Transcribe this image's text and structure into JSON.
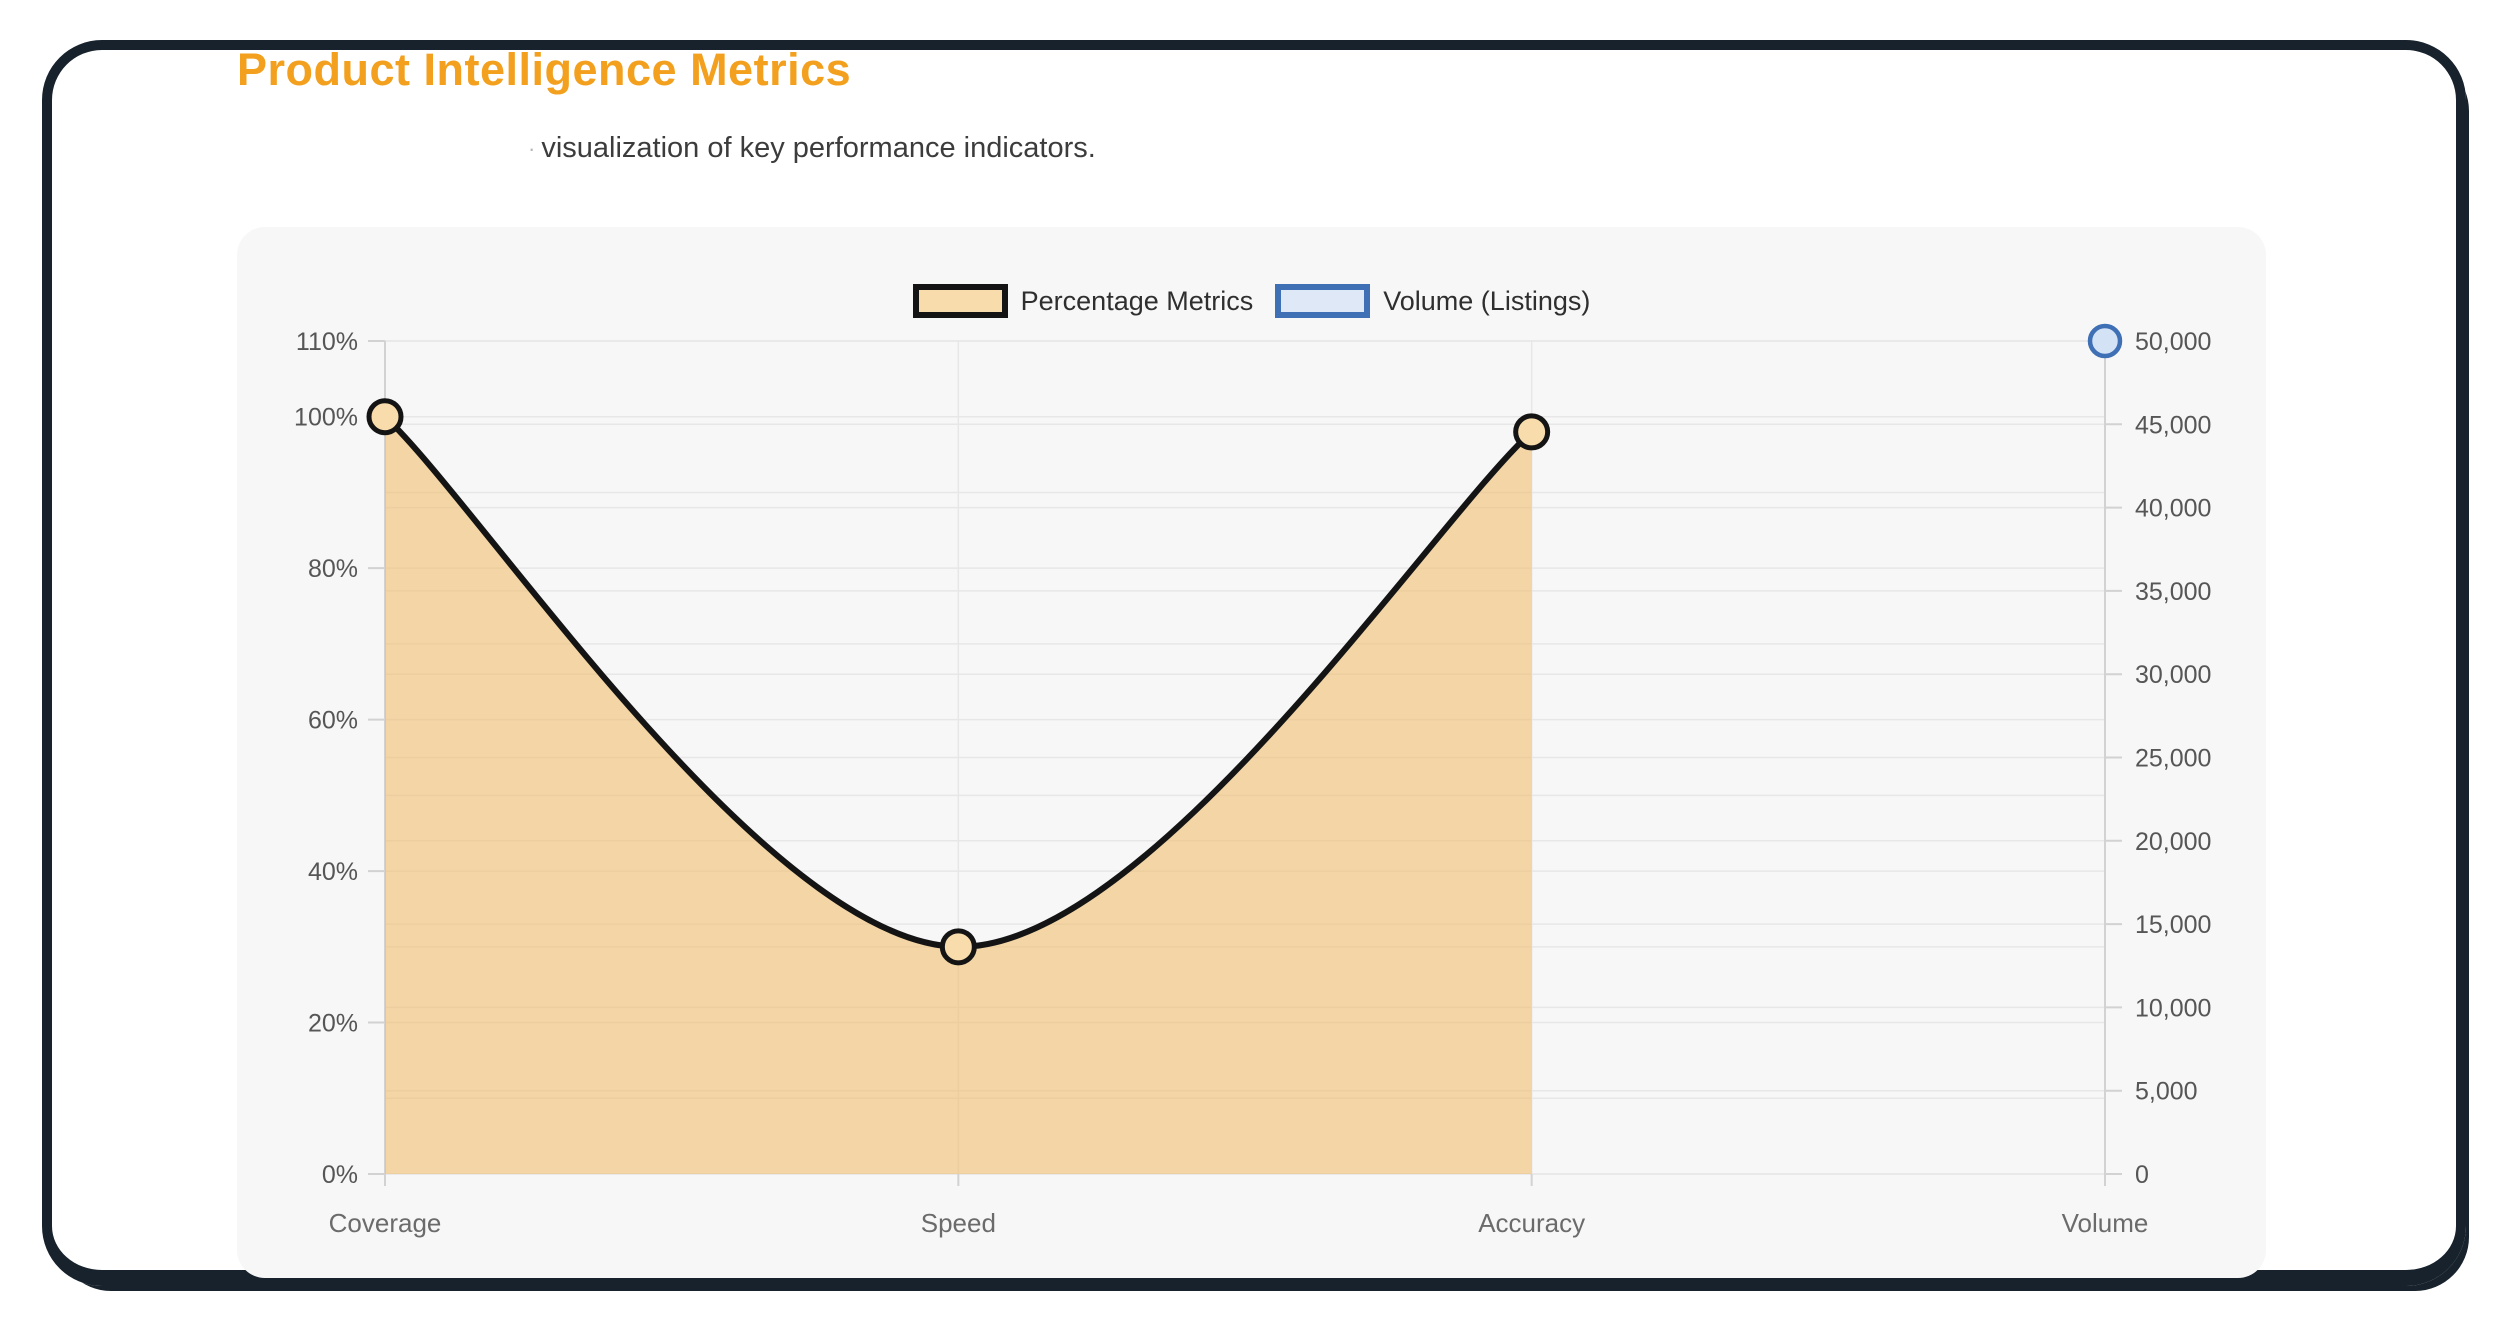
{
  "page": {
    "title": "Product Intelligence Metrics",
    "subtitle_mark": "·",
    "subtitle": "visualization of key performance indicators."
  },
  "colors": {
    "title_color": "#f2a01d",
    "subtitle_color": "#3c3c3c",
    "frame_color": "#17222c",
    "card_bg": "#f7f7f7",
    "grid_color": "#e7e7e7",
    "axis_line": "#d2d2d2",
    "tick_text": "#565656",
    "category_text": "#6b6b6b",
    "pct_line": "#141414",
    "pct_fill": "rgba(240,186,100,0.55)",
    "pct_point_fill": "#f8dcab",
    "vol_border": "#3f6fb5",
    "vol_fill": "#dfe8f6",
    "vol_point_fill": "#d3e3f5",
    "legend_text": "#2f2f2f"
  },
  "chart_data": {
    "type": "line",
    "title": "Product Intelligence Metrics",
    "categories": [
      "Coverage",
      "Speed",
      "Accuracy",
      "Volume"
    ],
    "series": [
      {
        "name": "Percentage Metrics",
        "axis": "left",
        "values": [
          100,
          30,
          98,
          null
        ]
      },
      {
        "name": "Volume (Listings)",
        "axis": "right",
        "values": [
          null,
          null,
          null,
          50000
        ]
      }
    ],
    "left_axis": {
      "min": 0,
      "max": 110,
      "grid_step": 10,
      "tick_labels": [
        {
          "value": 110,
          "label": "110%"
        },
        {
          "value": 100,
          "label": "100%"
        },
        {
          "value": 80,
          "label": "80%"
        },
        {
          "value": 60,
          "label": "60%"
        },
        {
          "value": 40,
          "label": "40%"
        },
        {
          "value": 20,
          "label": "20%"
        },
        {
          "value": 0,
          "label": "0%"
        }
      ]
    },
    "right_axis": {
      "min": 0,
      "max": 50000,
      "grid_step": 5000,
      "tick_labels": [
        {
          "value": 50000,
          "label": "50,000"
        },
        {
          "value": 45000,
          "label": "45,000"
        },
        {
          "value": 40000,
          "label": "40,000"
        },
        {
          "value": 35000,
          "label": "35,000"
        },
        {
          "value": 30000,
          "label": "30,000"
        },
        {
          "value": 25000,
          "label": "25,000"
        },
        {
          "value": 20000,
          "label": "20,000"
        },
        {
          "value": 15000,
          "label": "15,000"
        },
        {
          "value": 10000,
          "label": "10,000"
        },
        {
          "value": 5000,
          "label": "5,000"
        },
        {
          "value": 0,
          "label": "0"
        }
      ]
    },
    "legend": [
      {
        "label": "Percentage Metrics"
      },
      {
        "label": "Volume (Listings)"
      }
    ],
    "grid": true,
    "legend_position": "top"
  }
}
